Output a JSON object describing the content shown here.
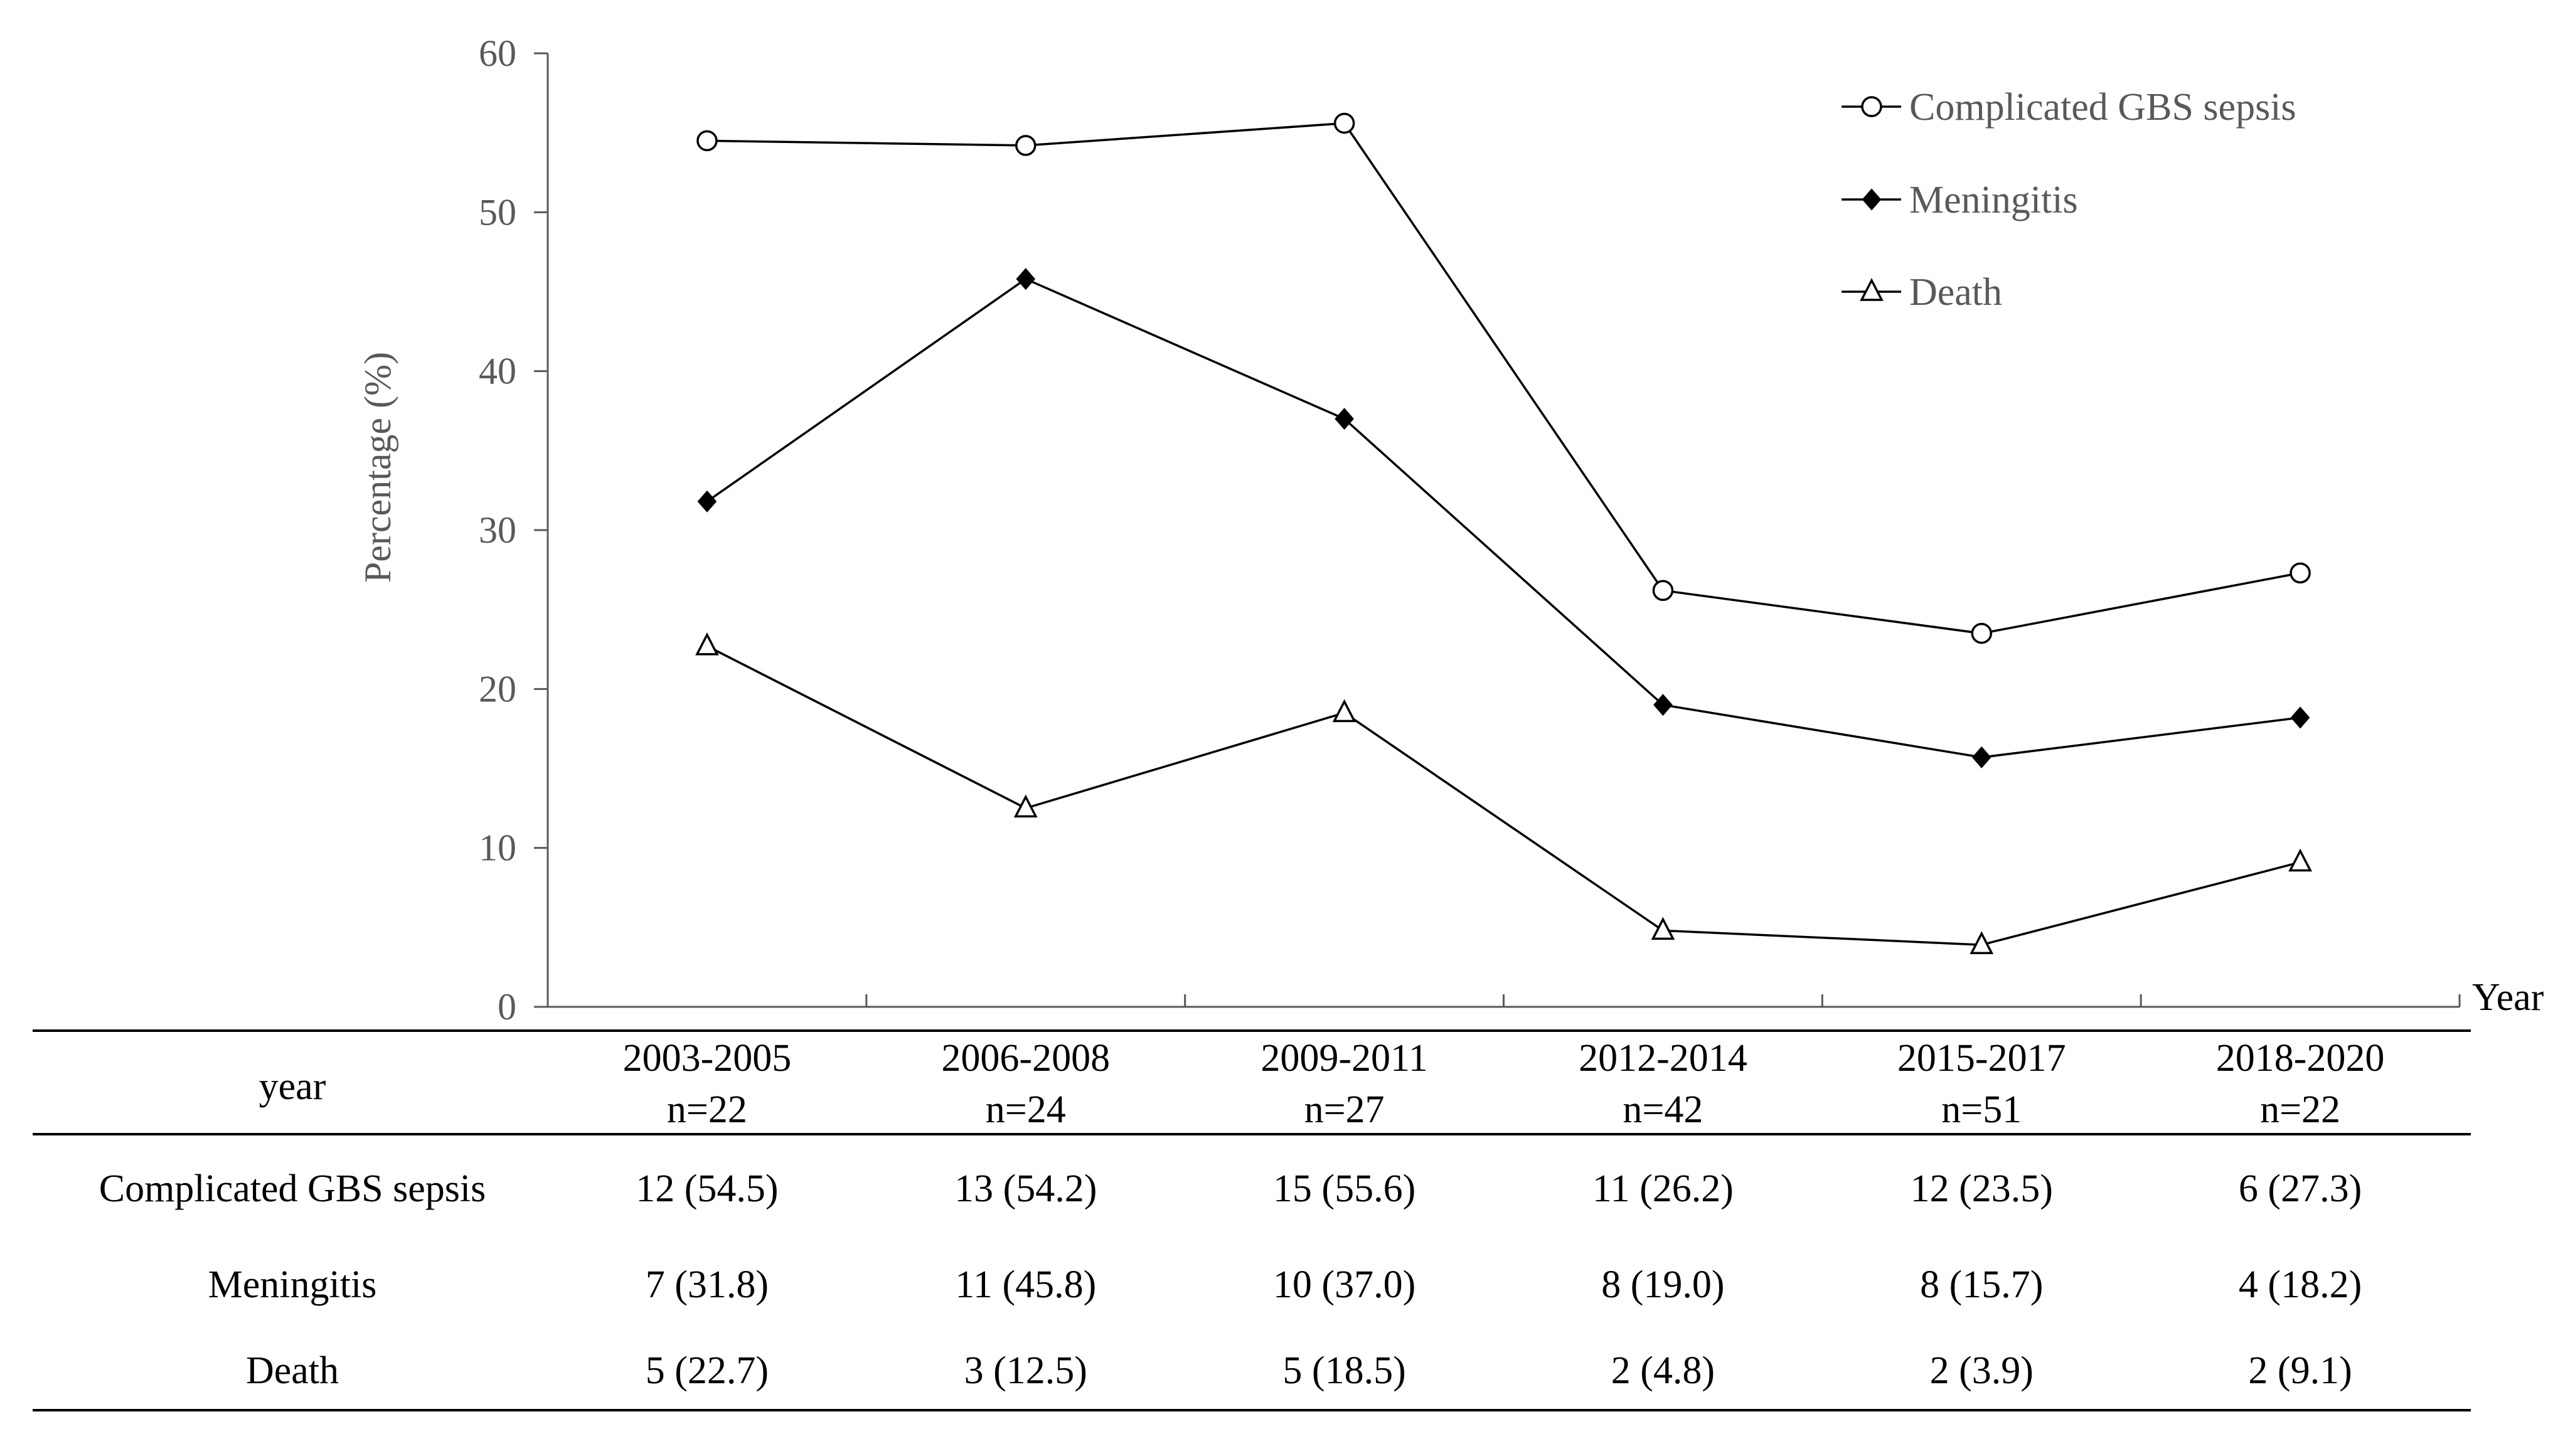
{
  "chart_data": {
    "type": "line",
    "categories": [
      "2003-2005",
      "2006-2008",
      "2009-2011",
      "2012-2014",
      "2015-2017",
      "2018-2020"
    ],
    "series": [
      {
        "name": "Complicated GBS sepsis",
        "marker": "open-circle",
        "values": [
          54.5,
          54.2,
          55.6,
          26.2,
          23.5,
          27.3
        ]
      },
      {
        "name": "Meningitis",
        "marker": "filled-diamond",
        "values": [
          31.8,
          45.8,
          37.0,
          19.0,
          15.7,
          18.2
        ]
      },
      {
        "name": "Death",
        "marker": "open-triangle",
        "values": [
          22.7,
          12.5,
          18.5,
          4.8,
          3.9,
          9.1
        ]
      }
    ],
    "ylabel": "Percentage (%)",
    "xlabel": "Year",
    "ylim": [
      0,
      60
    ],
    "yticks": [
      0,
      10,
      20,
      30,
      40,
      50,
      60
    ],
    "grid": false,
    "legend_position": "top-right"
  },
  "table": {
    "header_label": "year",
    "columns": [
      {
        "period": "2003-2005",
        "n": "n=22"
      },
      {
        "period": "2006-2008",
        "n": "n=24"
      },
      {
        "period": "2009-2011",
        "n": "n=27"
      },
      {
        "period": "2012-2014",
        "n": "n=42"
      },
      {
        "period": "2015-2017",
        "n": "n=51"
      },
      {
        "period": "2018-2020",
        "n": "n=22"
      }
    ],
    "rows": [
      {
        "label": "Complicated GBS sepsis",
        "cells": [
          "12 (54.5)",
          "13 (54.2)",
          "15 (55.6)",
          "11 (26.2)",
          "12 (23.5)",
          "6 (27.3)"
        ]
      },
      {
        "label": "Meningitis",
        "cells": [
          "7 (31.8)",
          "11 (45.8)",
          "10 (37.0)",
          "8 (19.0)",
          "8 (15.7)",
          "4 (18.2)"
        ]
      },
      {
        "label": "Death",
        "cells": [
          "5 (22.7)",
          "3 (12.5)",
          "5 (18.5)",
          "2 (4.8)",
          "2 (3.9)",
          "2 (9.1)"
        ]
      }
    ]
  },
  "colors": {
    "line": "#000000",
    "axis": "#595959",
    "marker_fill_open": "#ffffff"
  }
}
